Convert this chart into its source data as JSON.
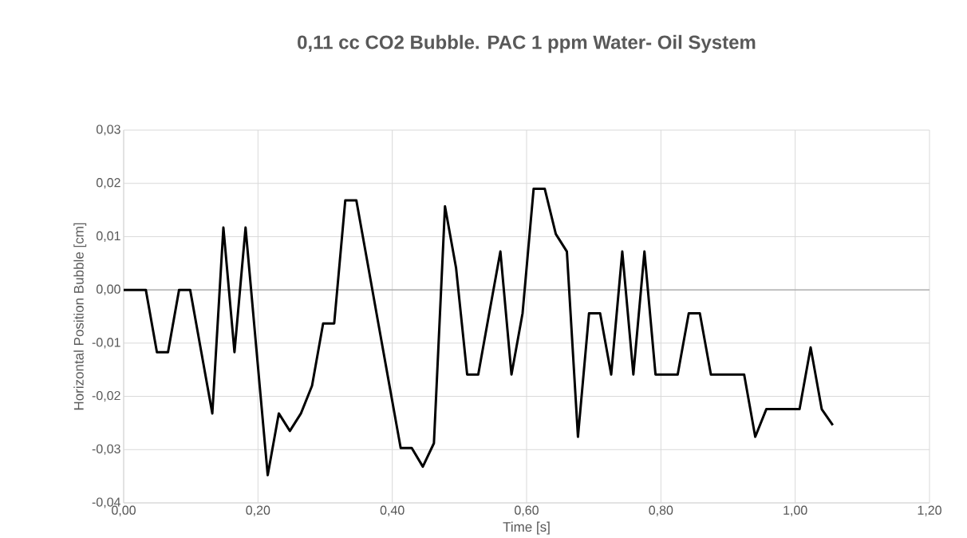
{
  "chart_data": {
    "type": "line",
    "title": "0,11 cc CO2 Bubble. PAC 1 ppm Water- Oil System",
    "xlabel": "Time [s]",
    "ylabel": "Horizontal Position Bubble [cm]",
    "color": "#000000",
    "grid": true,
    "x": [
      0,
      0.0165,
      0.033,
      0.0495,
      0.066,
      0.0825,
      0.099,
      0.1155,
      0.132,
      0.1485,
      0.165,
      0.1815,
      0.198,
      0.2145,
      0.231,
      0.2475,
      0.264,
      0.2805,
      0.297,
      0.3135,
      0.33,
      0.3465,
      0.363,
      0.3795,
      0.396,
      0.4125,
      0.429,
      0.4455,
      0.462,
      0.4785,
      0.495,
      0.5115,
      0.528,
      0.5445,
      0.561,
      0.5775,
      0.594,
      0.6105,
      0.627,
      0.6435,
      0.66,
      0.6765,
      0.693,
      0.7095,
      0.726,
      0.7425,
      0.759,
      0.7755,
      0.792,
      0.8085,
      0.825,
      0.8415,
      0.858,
      0.8745,
      0.891,
      0.9075,
      0.924,
      0.9405,
      0.957,
      0.9735,
      0.99,
      1.0065,
      1.023,
      1.0395,
      1.056
    ],
    "values": [
      0,
      0,
      0,
      -0.0117,
      -0.0117,
      0,
      0,
      -0.0116,
      -0.0232,
      0.0117,
      -0.0117,
      0.0117,
      -0.0116,
      -0.0348,
      -0.0232,
      -0.0265,
      -0.0232,
      -0.018,
      -0.0063,
      -0.0063,
      0.0168,
      0.0168,
      0.0052,
      -0.0065,
      -0.0181,
      -0.0297,
      -0.0297,
      -0.0332,
      -0.0288,
      0.0157,
      0.0041,
      -0.0159,
      -0.0159,
      -0.0043,
      0.0072,
      -0.0159,
      -0.0044,
      0.019,
      0.019,
      0.0105,
      0.0072,
      -0.0276,
      -0.0044,
      -0.0044,
      -0.0159,
      0.0072,
      -0.0159,
      0.0072,
      -0.0159,
      -0.0159,
      -0.0159,
      -0.0044,
      -0.0044,
      -0.0159,
      -0.0159,
      -0.0159,
      -0.0159,
      -0.0276,
      -0.0224,
      -0.0224,
      -0.0224,
      -0.0224,
      -0.0108,
      -0.0224,
      -0.0254
    ],
    "xlim": [
      0,
      1.2
    ],
    "ylim": [
      -0.04,
      0.03
    ],
    "xticks": [
      {
        "value": 0,
        "label": "0,00"
      },
      {
        "value": 0.2,
        "label": "0,20"
      },
      {
        "value": 0.4,
        "label": "0,40"
      },
      {
        "value": 0.6,
        "label": "0,60"
      },
      {
        "value": 0.8,
        "label": "0,80"
      },
      {
        "value": 1.0,
        "label": "1,00"
      },
      {
        "value": 1.2,
        "label": "1,20"
      }
    ],
    "yticks": [
      {
        "value": -0.04,
        "label": "-0,04"
      },
      {
        "value": -0.03,
        "label": "-0,03"
      },
      {
        "value": -0.02,
        "label": "-0,02"
      },
      {
        "value": -0.01,
        "label": "-0,01"
      },
      {
        "value": 0,
        "label": "0,00"
      },
      {
        "value": 0.01,
        "label": "0,01"
      },
      {
        "value": 0.02,
        "label": "0,02"
      },
      {
        "value": 0.03,
        "label": "0,03"
      }
    ]
  }
}
